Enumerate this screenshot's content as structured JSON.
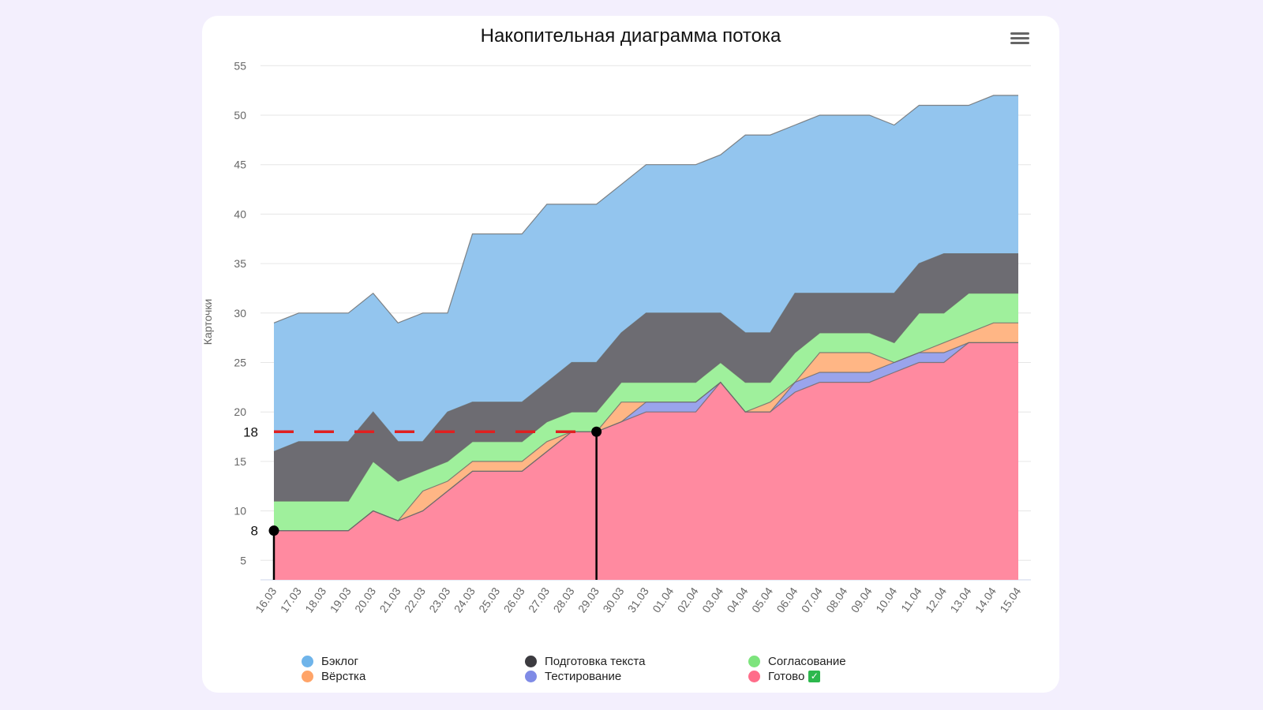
{
  "chart_data": {
    "type": "area",
    "stacked": true,
    "title": "Накопительная диаграмма потока",
    "xlabel": "",
    "ylabel": "Карточки",
    "ylim": [
      3,
      55
    ],
    "yticks": [
      5,
      10,
      15,
      20,
      25,
      30,
      35,
      40,
      45,
      50,
      55
    ],
    "grid": true,
    "legend_position": "bottom",
    "categories": [
      "16.03",
      "17.03",
      "18.03",
      "19.03",
      "20.03",
      "21.03",
      "22.03",
      "23.03",
      "24.03",
      "25.03",
      "26.03",
      "27.03",
      "28.03",
      "29.03",
      "30.03",
      "31.03",
      "01.04",
      "02.04",
      "03.04",
      "04.04",
      "05.04",
      "06.04",
      "07.04",
      "08.04",
      "09.04",
      "10.04",
      "11.04",
      "12.04",
      "13.04",
      "14.04",
      "15.04"
    ],
    "series": [
      {
        "name": "Готово",
        "color": "#ff8aa0",
        "values": [
          8,
          8,
          8,
          8,
          10,
          9,
          10,
          12,
          14,
          14,
          14,
          16,
          18,
          18,
          19,
          20,
          20,
          20,
          23,
          20,
          20,
          22,
          23,
          23,
          23,
          24,
          25,
          25,
          27,
          27,
          27
        ]
      },
      {
        "name": "Тестирование",
        "color": "#9aa4ec",
        "values": [
          0,
          0,
          0,
          0,
          0,
          0,
          0,
          0,
          0,
          0,
          0,
          0,
          0,
          0,
          0,
          1,
          1,
          1,
          0,
          0,
          0,
          1,
          1,
          1,
          1,
          1,
          1,
          1,
          0,
          0,
          0
        ]
      },
      {
        "name": "Вёрстка",
        "color": "#ffb685",
        "values": [
          0,
          0,
          0,
          0,
          0,
          0,
          2,
          1,
          1,
          1,
          1,
          1,
          0,
          0,
          2,
          0,
          0,
          0,
          0,
          0,
          1,
          0,
          2,
          2,
          2,
          0,
          0,
          1,
          1,
          2,
          2
        ]
      },
      {
        "name": "Согласование",
        "color": "#9ff09c",
        "values": [
          3,
          3,
          3,
          3,
          5,
          4,
          2,
          2,
          2,
          2,
          2,
          2,
          2,
          2,
          2,
          2,
          2,
          2,
          2,
          3,
          2,
          3,
          2,
          2,
          2,
          2,
          4,
          3,
          4,
          3,
          3
        ]
      },
      {
        "name": "Подготовка текста",
        "color": "#6d6c72",
        "values": [
          5,
          6,
          6,
          6,
          5,
          4,
          3,
          5,
          4,
          4,
          4,
          4,
          5,
          5,
          5,
          7,
          7,
          7,
          5,
          5,
          5,
          6,
          4,
          4,
          4,
          5,
          5,
          6,
          4,
          4,
          4
        ]
      },
      {
        "name": "Бэклог",
        "color": "#93c5ee",
        "values": [
          13,
          13,
          13,
          13,
          12,
          12,
          13,
          10,
          17,
          17,
          17,
          18,
          16,
          16,
          15,
          15,
          15,
          15,
          16,
          20,
          20,
          17,
          18,
          18,
          18,
          17,
          16,
          15,
          15,
          16,
          16
        ]
      }
    ],
    "annotations": [
      {
        "type": "hline",
        "y": 18,
        "label": "18",
        "style": "dashed",
        "color": "#e02020",
        "x_from": "16.03",
        "x_to": "29.03"
      },
      {
        "type": "vline-marker",
        "x": "16.03",
        "y": 8,
        "label": "8",
        "color": "#000000"
      },
      {
        "type": "vline-marker",
        "x": "29.03",
        "y": 18,
        "color": "#000000"
      }
    ]
  },
  "header": {
    "title": "Накопительная диаграмма потока",
    "menu_icon": "hamburger-menu-icon"
  },
  "axis": {
    "ylabel": "Карточки"
  },
  "legend": {
    "items": [
      {
        "label": "Бэклог",
        "color": "#6fb4ea"
      },
      {
        "label": "Подготовка текста",
        "color": "#3c3b40"
      },
      {
        "label": "Согласование",
        "color": "#7de47d"
      },
      {
        "label": "Вёрстка",
        "color": "#ffa468"
      },
      {
        "label": "Тестирование",
        "color": "#7f8be6"
      },
      {
        "label": "Готово",
        "color": "#ff6d8a",
        "badge": "✓"
      }
    ]
  }
}
